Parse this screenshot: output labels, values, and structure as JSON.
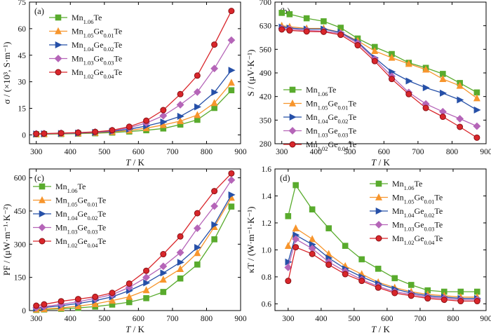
{
  "colors": {
    "Mn1.06Te": "#59ab2d",
    "Mn1.05Ge0.01Te": "#f7952c",
    "Mn1.04Ge0.02Te": "#2650a8",
    "Mn1.03Ge0.03Te": "#b565b8",
    "Mn1.02Ge0.04Te": "#d9262b"
  },
  "markers": {
    "Mn1.06Te": "square",
    "Mn1.05Ge0.01Te": "triangle-up",
    "Mn1.04Ge0.02Te": "triangle-right",
    "Mn1.03Ge0.03Te": "diamond",
    "Mn1.02Ge0.04Te": "circle"
  },
  "chart_data": [
    {
      "type": "line",
      "panel_label": "(a)",
      "xlabel": "T / K",
      "ylabel": "σ / (×10³, S·m⁻¹)",
      "xlim": [
        280,
        900
      ],
      "ylim": [
        -5,
        75
      ],
      "xticks": [
        300,
        400,
        500,
        600,
        700,
        800,
        900
      ],
      "yticks": [
        0,
        15,
        30,
        45,
        60,
        75
      ],
      "legend_position": "top-left",
      "x": [
        300,
        323,
        373,
        423,
        473,
        523,
        573,
        623,
        673,
        723,
        773,
        823,
        873
      ],
      "series": [
        {
          "name": "Mn1.06Te",
          "values": [
            0.3,
            0.4,
            0.5,
            0.7,
            0.9,
            1.3,
            1.9,
            2.6,
            3.6,
            5.8,
            8.5,
            15.2,
            25.2
          ]
        },
        {
          "name": "Mn1.05Ge0.01Te",
          "values": [
            0.4,
            0.5,
            0.7,
            0.9,
            1.2,
            1.7,
            2.5,
            3.8,
            5.6,
            7.8,
            11.2,
            18.0,
            29.5
          ]
        },
        {
          "name": "Mn1.04Ge0.02Te",
          "values": [
            0.5,
            0.6,
            0.8,
            1.0,
            1.4,
            2.0,
            3.2,
            5.0,
            7.3,
            10.5,
            15.8,
            24.0,
            36.5
          ]
        },
        {
          "name": "Mn1.03Ge0.03Te",
          "values": [
            0.6,
            0.7,
            0.9,
            1.2,
            1.6,
            2.4,
            4.0,
            6.7,
            10.8,
            17.0,
            24.2,
            37.5,
            53.5
          ]
        },
        {
          "name": "Mn1.02Ge0.04Te",
          "values": [
            0.6,
            0.7,
            1.0,
            1.3,
            1.7,
            2.6,
            4.6,
            8.0,
            14.0,
            23.0,
            33.5,
            51.0,
            70.0
          ]
        }
      ]
    },
    {
      "type": "line",
      "panel_label": "(b)",
      "xlabel": "T / K",
      "ylabel": "S / (μV·K⁻¹)",
      "xlim": [
        280,
        900
      ],
      "ylim": [
        280,
        700
      ],
      "xticks": [
        300,
        400,
        500,
        600,
        700,
        800,
        900
      ],
      "yticks": [
        280,
        350,
        420,
        490,
        560,
        630,
        700
      ],
      "legend_position": "bottom-left",
      "x": [
        300,
        323,
        373,
        423,
        473,
        523,
        573,
        623,
        673,
        723,
        773,
        823,
        873
      ],
      "series": [
        {
          "name": "Mn1.06Te",
          "values": [
            668,
            664,
            652,
            643,
            624,
            592,
            567,
            546,
            520,
            505,
            487,
            460,
            432
          ]
        },
        {
          "name": "Mn1.05Ge0.01Te",
          "values": [
            630,
            627,
            622,
            622,
            610,
            585,
            555,
            535,
            517,
            500,
            472,
            452,
            415
          ]
        },
        {
          "name": "Mn1.04Ge0.02Te",
          "values": [
            626,
            623,
            620,
            620,
            610,
            582,
            535,
            493,
            466,
            446,
            430,
            410,
            380
          ]
        },
        {
          "name": "Mn1.03Ge0.03Te",
          "values": [
            622,
            620,
            616,
            614,
            607,
            578,
            531,
            480,
            432,
            398,
            375,
            354,
            332
          ]
        },
        {
          "name": "Mn1.02Ge0.04Te",
          "values": [
            619,
            616,
            613,
            612,
            603,
            572,
            525,
            472,
            427,
            386,
            360,
            330,
            298
          ]
        }
      ]
    },
    {
      "type": "line",
      "panel_label": "(c)",
      "xlabel": "T / K",
      "ylabel": "PF / (μW·m⁻¹·K⁻²)",
      "xlim": [
        280,
        900
      ],
      "ylim": [
        0,
        640
      ],
      "xticks": [
        300,
        400,
        500,
        600,
        700,
        800,
        900
      ],
      "yticks": [
        0,
        150,
        300,
        450,
        600
      ],
      "legend_position": "top-left",
      "x": [
        300,
        323,
        373,
        423,
        473,
        523,
        573,
        623,
        673,
        723,
        773,
        823,
        873
      ],
      "series": [
        {
          "name": "Mn1.06Te",
          "values": [
            3,
            5,
            8,
            12,
            18,
            27,
            38,
            56,
            84,
            145,
            208,
            322,
            470
          ]
        },
        {
          "name": "Mn1.05Ge0.01Te",
          "values": [
            5,
            7,
            12,
            20,
            30,
            45,
            62,
            92,
            140,
            188,
            260,
            378,
            510
          ]
        },
        {
          "name": "Mn1.04Ge0.02Te",
          "values": [
            10,
            14,
            22,
            32,
            45,
            62,
            90,
            125,
            170,
            218,
            285,
            388,
            523
          ]
        },
        {
          "name": "Mn1.03Ge0.03Te",
          "values": [
            13,
            18,
            28,
            40,
            55,
            72,
            105,
            150,
            200,
            262,
            372,
            472,
            590
          ]
        },
        {
          "name": "Mn1.02Ge0.04Te",
          "values": [
            22,
            28,
            42,
            52,
            62,
            80,
            122,
            180,
            255,
            335,
            440,
            540,
            620
          ]
        }
      ]
    },
    {
      "type": "line",
      "panel_label": "(d)",
      "xlabel": "T / K",
      "ylabel": "κT / (W·m⁻¹·K⁻¹)",
      "xlim": [
        260,
        900
      ],
      "ylim": [
        0.55,
        1.6
      ],
      "xticks": [
        300,
        400,
        500,
        600,
        700,
        800,
        900
      ],
      "yticks": [
        0.6,
        0.8,
        1.0,
        1.2,
        1.4,
        1.6
      ],
      "legend_position": "top-right",
      "x": [
        300,
        323,
        373,
        423,
        473,
        523,
        573,
        623,
        673,
        723,
        773,
        823,
        873
      ],
      "series": [
        {
          "name": "Mn1.06Te",
          "values": [
            1.25,
            1.48,
            1.3,
            1.16,
            1.03,
            0.93,
            0.86,
            0.79,
            0.74,
            0.7,
            0.69,
            0.69,
            0.69
          ]
        },
        {
          "name": "Mn1.05Ge0.01Te",
          "values": [
            1.03,
            1.16,
            1.08,
            0.97,
            0.88,
            0.82,
            0.76,
            0.72,
            0.69,
            0.67,
            0.66,
            0.65,
            0.65
          ]
        },
        {
          "name": "Mn1.04Ge0.02Te",
          "values": [
            0.91,
            1.11,
            1.04,
            0.94,
            0.86,
            0.8,
            0.75,
            0.71,
            0.68,
            0.66,
            0.65,
            0.64,
            0.64
          ]
        },
        {
          "name": "Mn1.03Ge0.03Te",
          "values": [
            0.87,
            1.08,
            1.01,
            0.91,
            0.84,
            0.78,
            0.73,
            0.69,
            0.67,
            0.65,
            0.64,
            0.63,
            0.63
          ]
        },
        {
          "name": "Mn1.02Ge0.04Te",
          "values": [
            0.77,
            1.02,
            0.97,
            0.89,
            0.82,
            0.77,
            0.72,
            0.68,
            0.66,
            0.64,
            0.63,
            0.62,
            0.62
          ]
        }
      ]
    }
  ]
}
